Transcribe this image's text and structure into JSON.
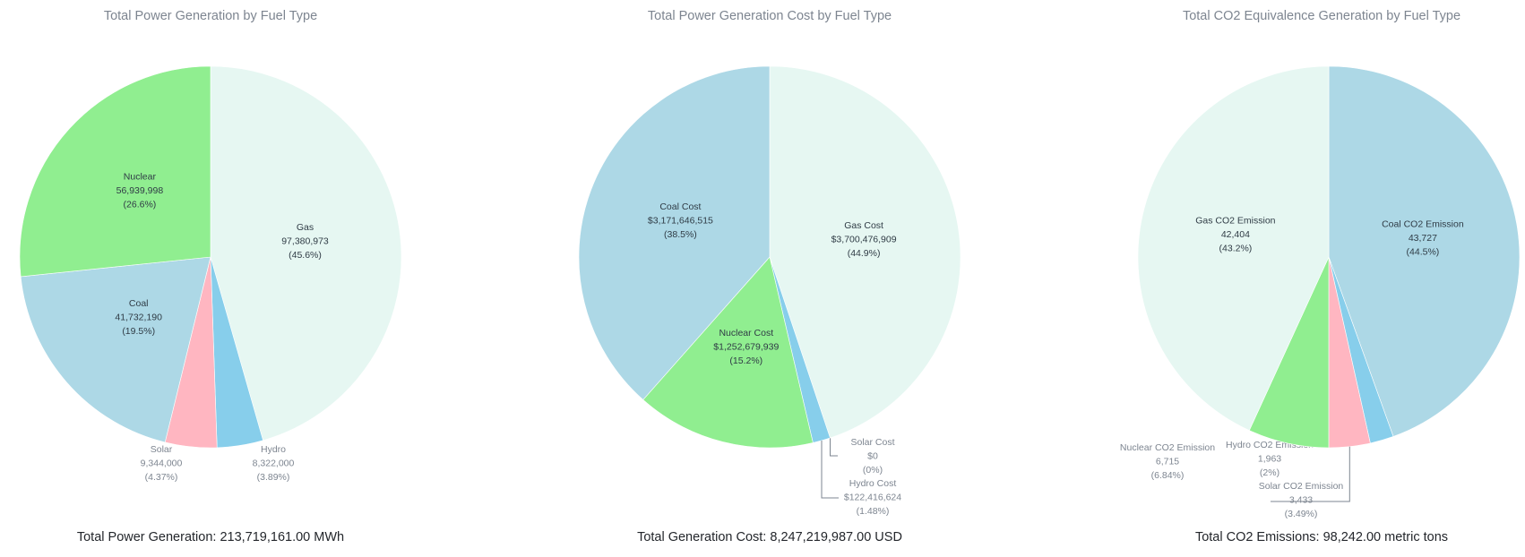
{
  "chart_data": [
    {
      "type": "pie",
      "title": "Total Power Generation by Fuel Type",
      "slices": [
        {
          "label": "Gas",
          "value": 97380973,
          "value_text": "97,380,973",
          "pct_text": "(45.6%)",
          "color": "#e6f7f2"
        },
        {
          "label": "Hydro",
          "value": 8322000,
          "value_text": "8,322,000",
          "pct_text": "(3.89%)",
          "color": "#87ceeb"
        },
        {
          "label": "Solar",
          "value": 9344000,
          "value_text": "9,344,000",
          "pct_text": "(4.37%)",
          "color": "#ffb6c1"
        },
        {
          "label": "Coal",
          "value": 41732190,
          "value_text": "41,732,190",
          "pct_text": "(19.5%)",
          "color": "#add8e6"
        },
        {
          "label": "Nuclear",
          "value": 56939998,
          "value_text": "56,939,998",
          "pct_text": "(26.6%)",
          "color": "#90ee90"
        }
      ],
      "total_label": "Total Power Generation:",
      "total_value": "213,719,161.00",
      "total_unit": "MWh"
    },
    {
      "type": "pie",
      "title": "Total Power Generation Cost by Fuel Type",
      "slices": [
        {
          "label": "Gas Cost",
          "value": 3700476909,
          "value_text": "$3,700,476,909",
          "pct_text": "(44.9%)",
          "color": "#e6f7f2"
        },
        {
          "label": "Solar Cost",
          "value": 0,
          "value_text": "$0",
          "pct_text": "(0%)",
          "color": "#ffb6c1"
        },
        {
          "label": "Hydro Cost",
          "value": 122416624,
          "value_text": "$122,416,624",
          "pct_text": "(1.48%)",
          "color": "#87ceeb"
        },
        {
          "label": "Nuclear Cost",
          "value": 1252679939,
          "value_text": "$1,252,679,939",
          "pct_text": "(15.2%)",
          "color": "#90ee90"
        },
        {
          "label": "Coal Cost",
          "value": 3171646515,
          "value_text": "$3,171,646,515",
          "pct_text": "(38.5%)",
          "color": "#add8e6"
        }
      ],
      "total_label": "Total Generation Cost:",
      "total_value": "8,247,219,987.00",
      "total_unit": "USD"
    },
    {
      "type": "pie",
      "title": "Total CO2 Equivalence Generation by Fuel Type",
      "slices": [
        {
          "label": "Coal CO2 Emission",
          "value": 43727,
          "value_text": "43,727",
          "pct_text": "(44.5%)",
          "color": "#add8e6"
        },
        {
          "label": "Hydro CO2 Emission",
          "value": 1963,
          "value_text": "1,963",
          "pct_text": "(2%)",
          "color": "#87ceeb"
        },
        {
          "label": "Solar CO2 Emission",
          "value": 3433,
          "value_text": "3,433",
          "pct_text": "(3.49%)",
          "color": "#ffb6c1"
        },
        {
          "label": "Nuclear CO2 Emission",
          "value": 6715,
          "value_text": "6,715",
          "pct_text": "(6.84%)",
          "color": "#90ee90"
        },
        {
          "label": "Gas CO2 Emission",
          "value": 42404,
          "value_text": "42,404",
          "pct_text": "(43.2%)",
          "color": "#e6f7f2"
        }
      ],
      "total_label": "Total CO2 Emissions:",
      "total_value": "98,242.00",
      "total_unit": "metric tons"
    }
  ]
}
